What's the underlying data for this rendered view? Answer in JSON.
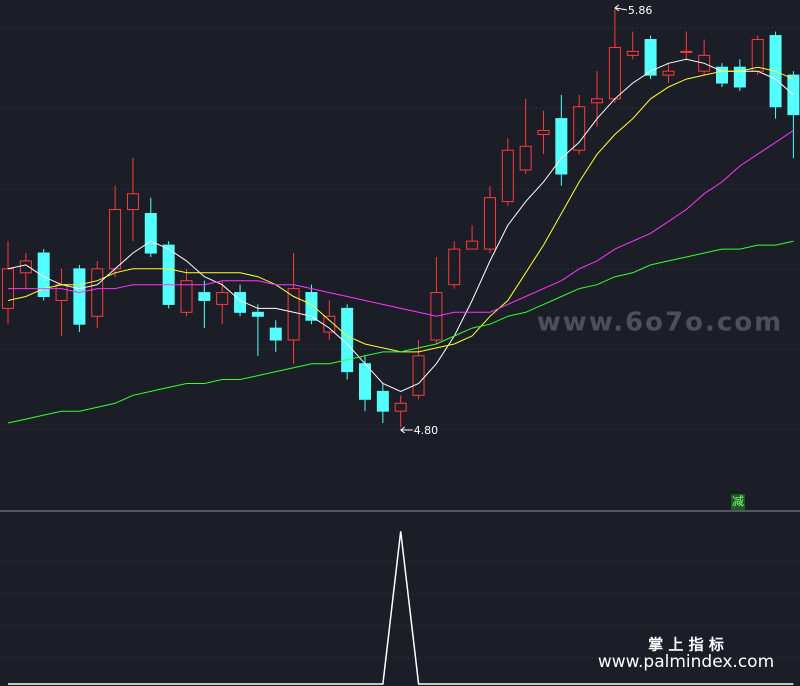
{
  "chart_data": [
    {
      "type": "candlestick",
      "ylim": [
        4.59,
        5.88
      ],
      "up_color": "#ff3b3b",
      "down_color": "#54ffff",
      "open": [
        5.1,
        5.19,
        5.24,
        5.12,
        5.2,
        5.08,
        5.2,
        5.35,
        5.34,
        5.26,
        5.09,
        5.14,
        5.11,
        5.14,
        5.09,
        5.05,
        5.02,
        5.14,
        5.04,
        5.1,
        4.96,
        4.89,
        4.84,
        4.88,
        5.02,
        5.16,
        5.25,
        5.25,
        5.37,
        5.45,
        5.54,
        5.58,
        5.5,
        5.62,
        5.63,
        5.74,
        5.78,
        5.69,
        5.75,
        5.7,
        5.71,
        5.71,
        5.7,
        5.79,
        5.69
      ],
      "high": [
        5.27,
        5.24,
        5.25,
        5.2,
        5.21,
        5.22,
        5.41,
        5.48,
        5.38,
        5.27,
        5.2,
        5.17,
        5.17,
        5.16,
        5.11,
        5.07,
        5.24,
        5.16,
        5.12,
        5.11,
        4.98,
        4.91,
        4.88,
        5.02,
        5.23,
        5.27,
        5.31,
        5.41,
        5.53,
        5.63,
        5.6,
        5.64,
        5.64,
        5.7,
        5.86,
        5.8,
        5.79,
        5.72,
        5.8,
        5.78,
        5.72,
        5.73,
        5.79,
        5.8,
        5.7
      ],
      "low": [
        5.06,
        5.15,
        5.12,
        5.03,
        5.04,
        5.05,
        5.18,
        5.27,
        5.23,
        5.1,
        5.08,
        5.05,
        5.06,
        5.08,
        4.98,
        4.99,
        4.96,
        5.06,
        5.02,
        4.92,
        4.84,
        4.81,
        4.8,
        4.87,
        5.01,
        5.15,
        5.25,
        5.24,
        5.36,
        5.44,
        5.49,
        5.41,
        5.49,
        5.56,
        5.62,
        5.73,
        5.68,
        5.67,
        5.73,
        5.69,
        5.66,
        5.65,
        5.69,
        5.58,
        5.48
      ],
      "close": [
        5.2,
        5.22,
        5.13,
        5.16,
        5.06,
        5.2,
        5.35,
        5.39,
        5.24,
        5.11,
        5.17,
        5.12,
        5.14,
        5.09,
        5.08,
        5.02,
        5.15,
        5.07,
        5.08,
        4.94,
        4.87,
        4.84,
        4.86,
        4.98,
        5.14,
        5.25,
        5.27,
        5.38,
        5.5,
        5.51,
        5.55,
        5.44,
        5.61,
        5.63,
        5.76,
        5.75,
        5.69,
        5.7,
        5.75,
        5.74,
        5.67,
        5.66,
        5.78,
        5.61,
        5.59
      ],
      "lines": [
        {
          "color": "#ffffff",
          "values": [
            5.2,
            5.21,
            5.18,
            5.16,
            5.15,
            5.16,
            5.2,
            5.24,
            5.27,
            5.25,
            5.22,
            5.18,
            5.16,
            5.12,
            5.1,
            5.1,
            5.09,
            5.08,
            5.05,
            5.01,
            4.96,
            4.91,
            4.89,
            4.91,
            4.96,
            5.03,
            5.12,
            5.22,
            5.31,
            5.37,
            5.42,
            5.48,
            5.52,
            5.58,
            5.63,
            5.67,
            5.7,
            5.72,
            5.73,
            5.72,
            5.7,
            5.7,
            5.7,
            5.68,
            5.64
          ]
        },
        {
          "color": "#ffff33",
          "values": [
            5.12,
            5.13,
            5.15,
            5.16,
            5.16,
            5.17,
            5.19,
            5.2,
            5.2,
            5.2,
            5.19,
            5.19,
            5.19,
            5.19,
            5.18,
            5.16,
            5.13,
            5.11,
            5.07,
            5.03,
            5.01,
            5.0,
            4.99,
            4.99,
            5.0,
            5.01,
            5.03,
            5.08,
            5.12,
            5.19,
            5.26,
            5.34,
            5.42,
            5.49,
            5.54,
            5.58,
            5.63,
            5.66,
            5.68,
            5.69,
            5.7,
            5.7,
            5.71,
            5.7,
            5.68
          ]
        },
        {
          "color": "#ff33ff",
          "values": [
            5.15,
            5.15,
            5.15,
            5.15,
            5.14,
            5.15,
            5.15,
            5.16,
            5.16,
            5.16,
            5.16,
            5.16,
            5.17,
            5.17,
            5.17,
            5.16,
            5.16,
            5.15,
            5.14,
            5.13,
            5.12,
            5.11,
            5.1,
            5.09,
            5.08,
            5.09,
            5.09,
            5.09,
            5.11,
            5.13,
            5.15,
            5.17,
            5.2,
            5.22,
            5.25,
            5.27,
            5.29,
            5.32,
            5.35,
            5.39,
            5.42,
            5.46,
            5.49,
            5.52,
            5.55
          ]
        },
        {
          "color": "#33ff33",
          "values": [
            4.81,
            4.82,
            4.83,
            4.84,
            4.84,
            4.85,
            4.86,
            4.88,
            4.89,
            4.9,
            4.91,
            4.91,
            4.92,
            4.92,
            4.93,
            4.94,
            4.95,
            4.96,
            4.96,
            4.97,
            4.98,
            4.99,
            4.99,
            5.0,
            5.01,
            5.03,
            5.05,
            5.06,
            5.08,
            5.09,
            5.11,
            5.13,
            5.15,
            5.16,
            5.18,
            5.19,
            5.21,
            5.22,
            5.23,
            5.24,
            5.25,
            5.25,
            5.26,
            5.26,
            5.27
          ]
        }
      ],
      "max_label": "5.86",
      "min_label": "4.80",
      "signal": "减",
      "watermark": "www.6o7o.com"
    },
    {
      "type": "line",
      "color": "#ffffff",
      "ylim": [
        0,
        1.1
      ],
      "values": [
        0,
        0,
        0,
        0,
        0,
        0,
        0,
        0,
        0,
        0,
        0,
        0,
        0,
        0,
        0,
        0,
        0,
        0,
        0,
        0,
        0,
        0,
        1,
        0,
        0,
        0,
        0,
        0,
        0,
        0,
        0,
        0,
        0,
        0,
        0,
        0,
        0,
        0,
        0,
        0,
        0,
        0,
        0,
        0,
        0
      ],
      "brand": "掌 上 指 标",
      "site": "www.palmindex.com"
    }
  ]
}
